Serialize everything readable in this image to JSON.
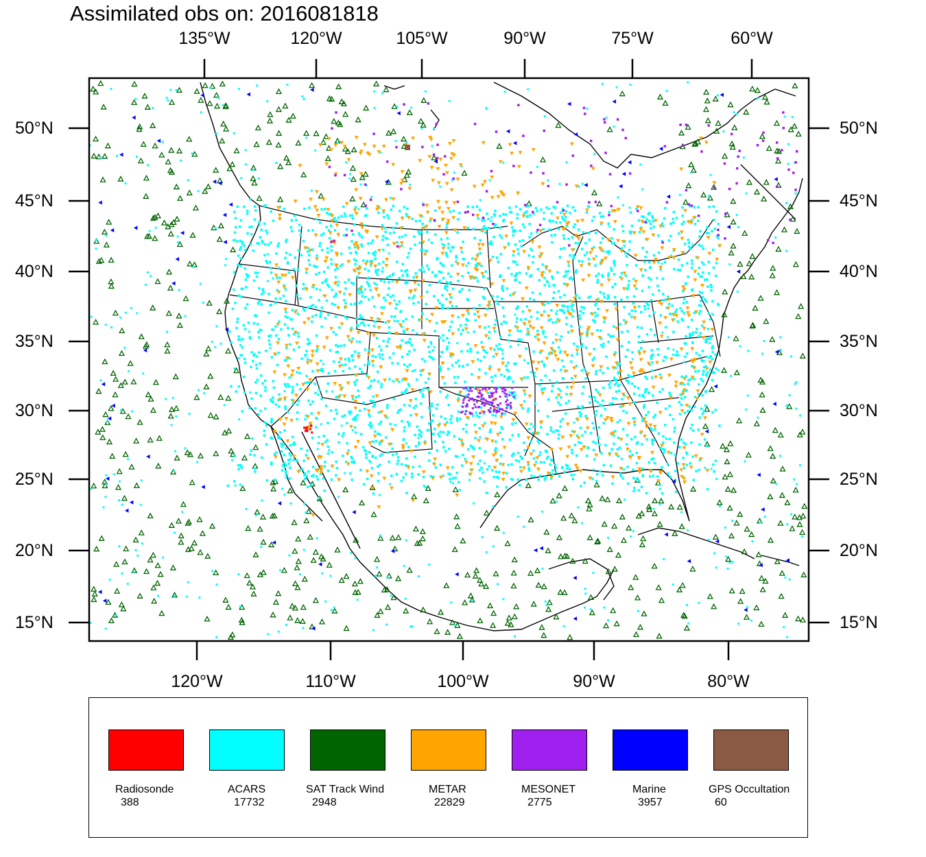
{
  "title": "Assimilated obs on: 2016081818",
  "top_lon_labels": [
    "135°W",
    "120°W",
    "105°W",
    "90°W",
    "75°W",
    "60°W"
  ],
  "bottom_lon_labels": [
    "120°W",
    "110°W",
    "100°W",
    "90°W",
    "80°W"
  ],
  "lat_labels": [
    "50°N",
    "45°N",
    "40°N",
    "35°N",
    "30°N",
    "25°N",
    "20°N",
    "15°N"
  ],
  "legend": [
    {
      "name": "Radiosonde",
      "count": "388",
      "color": "#ff0000"
    },
    {
      "name": "ACARS",
      "count": "17732",
      "color": "#00ffff"
    },
    {
      "name": "SAT Track Wind",
      "count": "2948",
      "color": "#006400"
    },
    {
      "name": "METAR",
      "count": "22829",
      "color": "#ffa500"
    },
    {
      "name": "MESONET",
      "count": "2775",
      "color": "#a020f0"
    },
    {
      "name": "Marine",
      "count": "3957",
      "color": "#0000ff"
    },
    {
      "name": "GPS Occultation",
      "count": "60",
      "color": "#8b5a44"
    }
  ]
}
